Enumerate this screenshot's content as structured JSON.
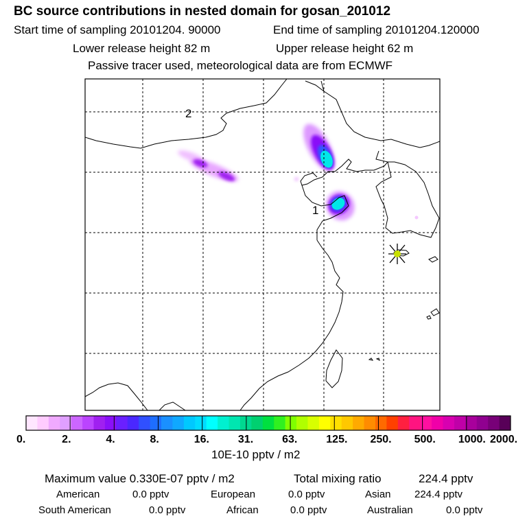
{
  "header": {
    "title": "BC  source contributions in nested domain for gosan_201012",
    "start_time": "Start time of sampling 20101204. 90000",
    "end_time": "End time of sampling 20101204.120000",
    "lower_height": "Lower release height   82 m",
    "upper_height": "Upper release height   62 m",
    "tracer_note": "Passive tracer used, meteorological data are from ECMWF"
  },
  "chart_data": {
    "type": "heatmap",
    "title": "BC  source contributions in nested domain for gosan_201012",
    "map_labels": [
      "2",
      "1"
    ],
    "receptor": "gosan",
    "colorbar": {
      "unit": "10E-10 pptv / m2",
      "ticks": [
        "0.",
        "2.",
        "4.",
        "8.",
        "16.",
        "31.",
        "63.",
        "125.",
        "250.",
        "500.",
        "1000.",
        "2000."
      ],
      "colors": [
        "#ffe6ff",
        "#ffccff",
        "#f0aaff",
        "#e0a0ff",
        "#cc66ff",
        "#bb44ff",
        "#a020f0",
        "#8a10f8",
        "#6a20ff",
        "#4a28ff",
        "#3050ff",
        "#1e6eff",
        "#1a90ff",
        "#10a8ff",
        "#00c8ff",
        "#00dcff",
        "#00ffff",
        "#00f0d0",
        "#00e6b0",
        "#00d890",
        "#00d070",
        "#00e040",
        "#30f020",
        "#80ff00",
        "#b0ff00",
        "#d8ff00",
        "#ffff00",
        "#ffe000",
        "#ffc800",
        "#ffaa00",
        "#ff8c00",
        "#ff6a00",
        "#ff4000",
        "#ff2040",
        "#ff1480",
        "#ff10a0",
        "#f000a8",
        "#d800b0",
        "#c000a8",
        "#a8009c",
        "#900090",
        "#780078",
        "#580058"
      ]
    }
  },
  "stats": {
    "max_value": "Maximum value  0.330E-07 pptv / m2",
    "total_mixing": "Total mixing ratio",
    "total_mixing_value": "224.4 pptv",
    "regions": [
      {
        "name": "American",
        "value": "0.0 pptv"
      },
      {
        "name": "European",
        "value": "0.0 pptv"
      },
      {
        "name": "Asian",
        "value": "224.4 pptv"
      },
      {
        "name": "South American",
        "value": "0.0 pptv"
      },
      {
        "name": "African",
        "value": "0.0 pptv"
      },
      {
        "name": "Australian",
        "value": "0.0 pptv"
      }
    ]
  }
}
